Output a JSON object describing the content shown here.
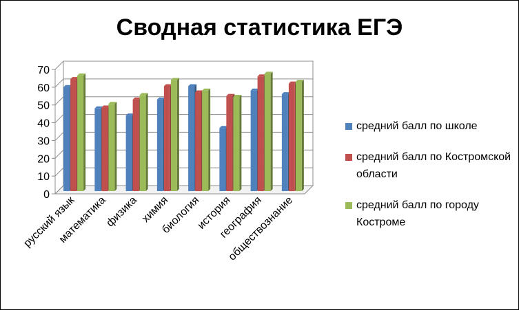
{
  "chart_data": {
    "type": "bar",
    "title": "Сводная статистика ЕГЭ",
    "categories": [
      "русский язык",
      "математика",
      "физика",
      "химия",
      "биология",
      "история",
      "география",
      "обществознание"
    ],
    "series": [
      {
        "name": "средний балл по школе",
        "color": "#4F81BD",
        "values": [
          58.5,
          46.5,
          42.5,
          51.5,
          59,
          35.5,
          56.5,
          54.5
        ]
      },
      {
        "name": "средний балл по Костромской области",
        "color": "#C0504D",
        "values": [
          63,
          47,
          51.5,
          59,
          55.5,
          53.5,
          64.5,
          60.5
        ]
      },
      {
        "name": "средний балл по городу Костроме",
        "color": "#9BBB59",
        "values": [
          65,
          49,
          54,
          62.5,
          56.5,
          53,
          66,
          61.5
        ]
      }
    ],
    "ylim": [
      0,
      70
    ],
    "yticks": [
      0,
      10,
      20,
      30,
      40,
      50,
      60,
      70
    ],
    "grid": true,
    "legend_position": "right"
  }
}
